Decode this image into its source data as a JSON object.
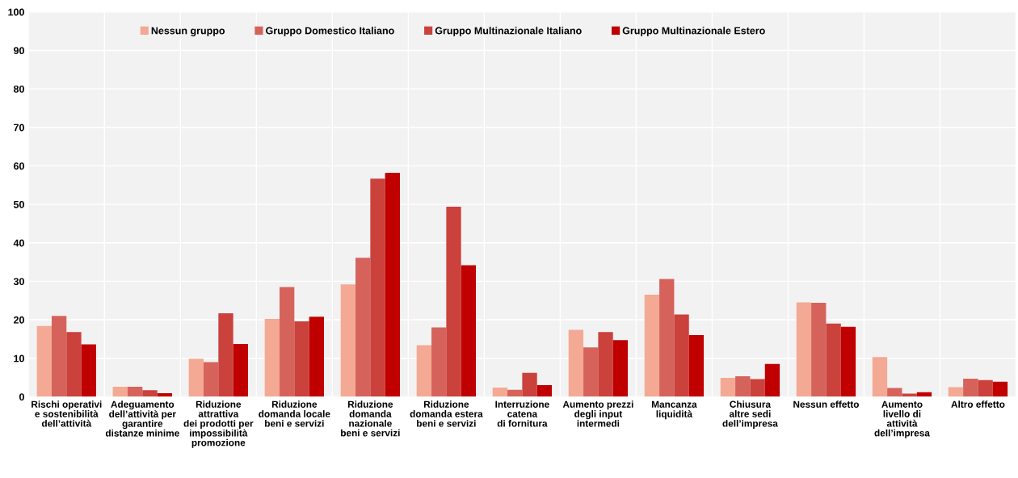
{
  "chart_data": {
    "type": "bar",
    "categories": [
      "Rischi operativi\ne sostenibilità\ndell’attività",
      "Adeguamento\ndell’attività per\ngarantire\ndistanze minime",
      "Riduzione\nattrattiva\ndei prodotti per\nimpossibilità\npromozione",
      "Riduzione\ndomanda locale\nbeni e servizi",
      "Riduzione\ndomanda\nnazionale\nbeni e servizi",
      "Riduzione\ndomanda estera\nbeni e servizi",
      "Interruzione\ncatena\ndi fornitura",
      "Aumento prezzi\ndegli input\nintermedi",
      "Mancanza\nliquidità",
      "Chiusura\naltre sedi\ndell’impresa",
      "Nessun effetto",
      "Aumento\nlivello di\nattività\ndell’impresa",
      "Altro effetto"
    ],
    "series": [
      {
        "name": "Nessun gruppo",
        "color": "#f4a994",
        "values": [
          18.4,
          2.6,
          9.9,
          20.2,
          29.2,
          13.4,
          2.4,
          17.4,
          26.5,
          4.9,
          24.5,
          10.3,
          2.5
        ]
      },
      {
        "name": "Gruppo Domestico Italiano",
        "color": "#d6635b",
        "values": [
          21.0,
          2.6,
          9.0,
          28.5,
          36.1,
          18.0,
          1.8,
          12.8,
          30.6,
          5.3,
          24.4,
          2.3,
          4.7
        ]
      },
      {
        "name": "Gruppo Multinazionale Italiano",
        "color": "#cb413c",
        "values": [
          16.8,
          1.7,
          21.7,
          19.6,
          56.7,
          49.4,
          6.2,
          16.8,
          21.4,
          4.6,
          19.0,
          0.8,
          4.3
        ]
      },
      {
        "name": "Gruppo Multinazionale Estero",
        "color": "#c00000",
        "values": [
          13.6,
          0.9,
          13.7,
          20.8,
          58.2,
          34.2,
          3.0,
          14.7,
          16.0,
          8.5,
          18.2,
          1.2,
          3.9
        ]
      }
    ],
    "ylim": [
      0,
      100
    ],
    "yticks": [
      0,
      10,
      20,
      30,
      40,
      50,
      60,
      70,
      80,
      90,
      100
    ],
    "grid": true,
    "legend": "top"
  }
}
